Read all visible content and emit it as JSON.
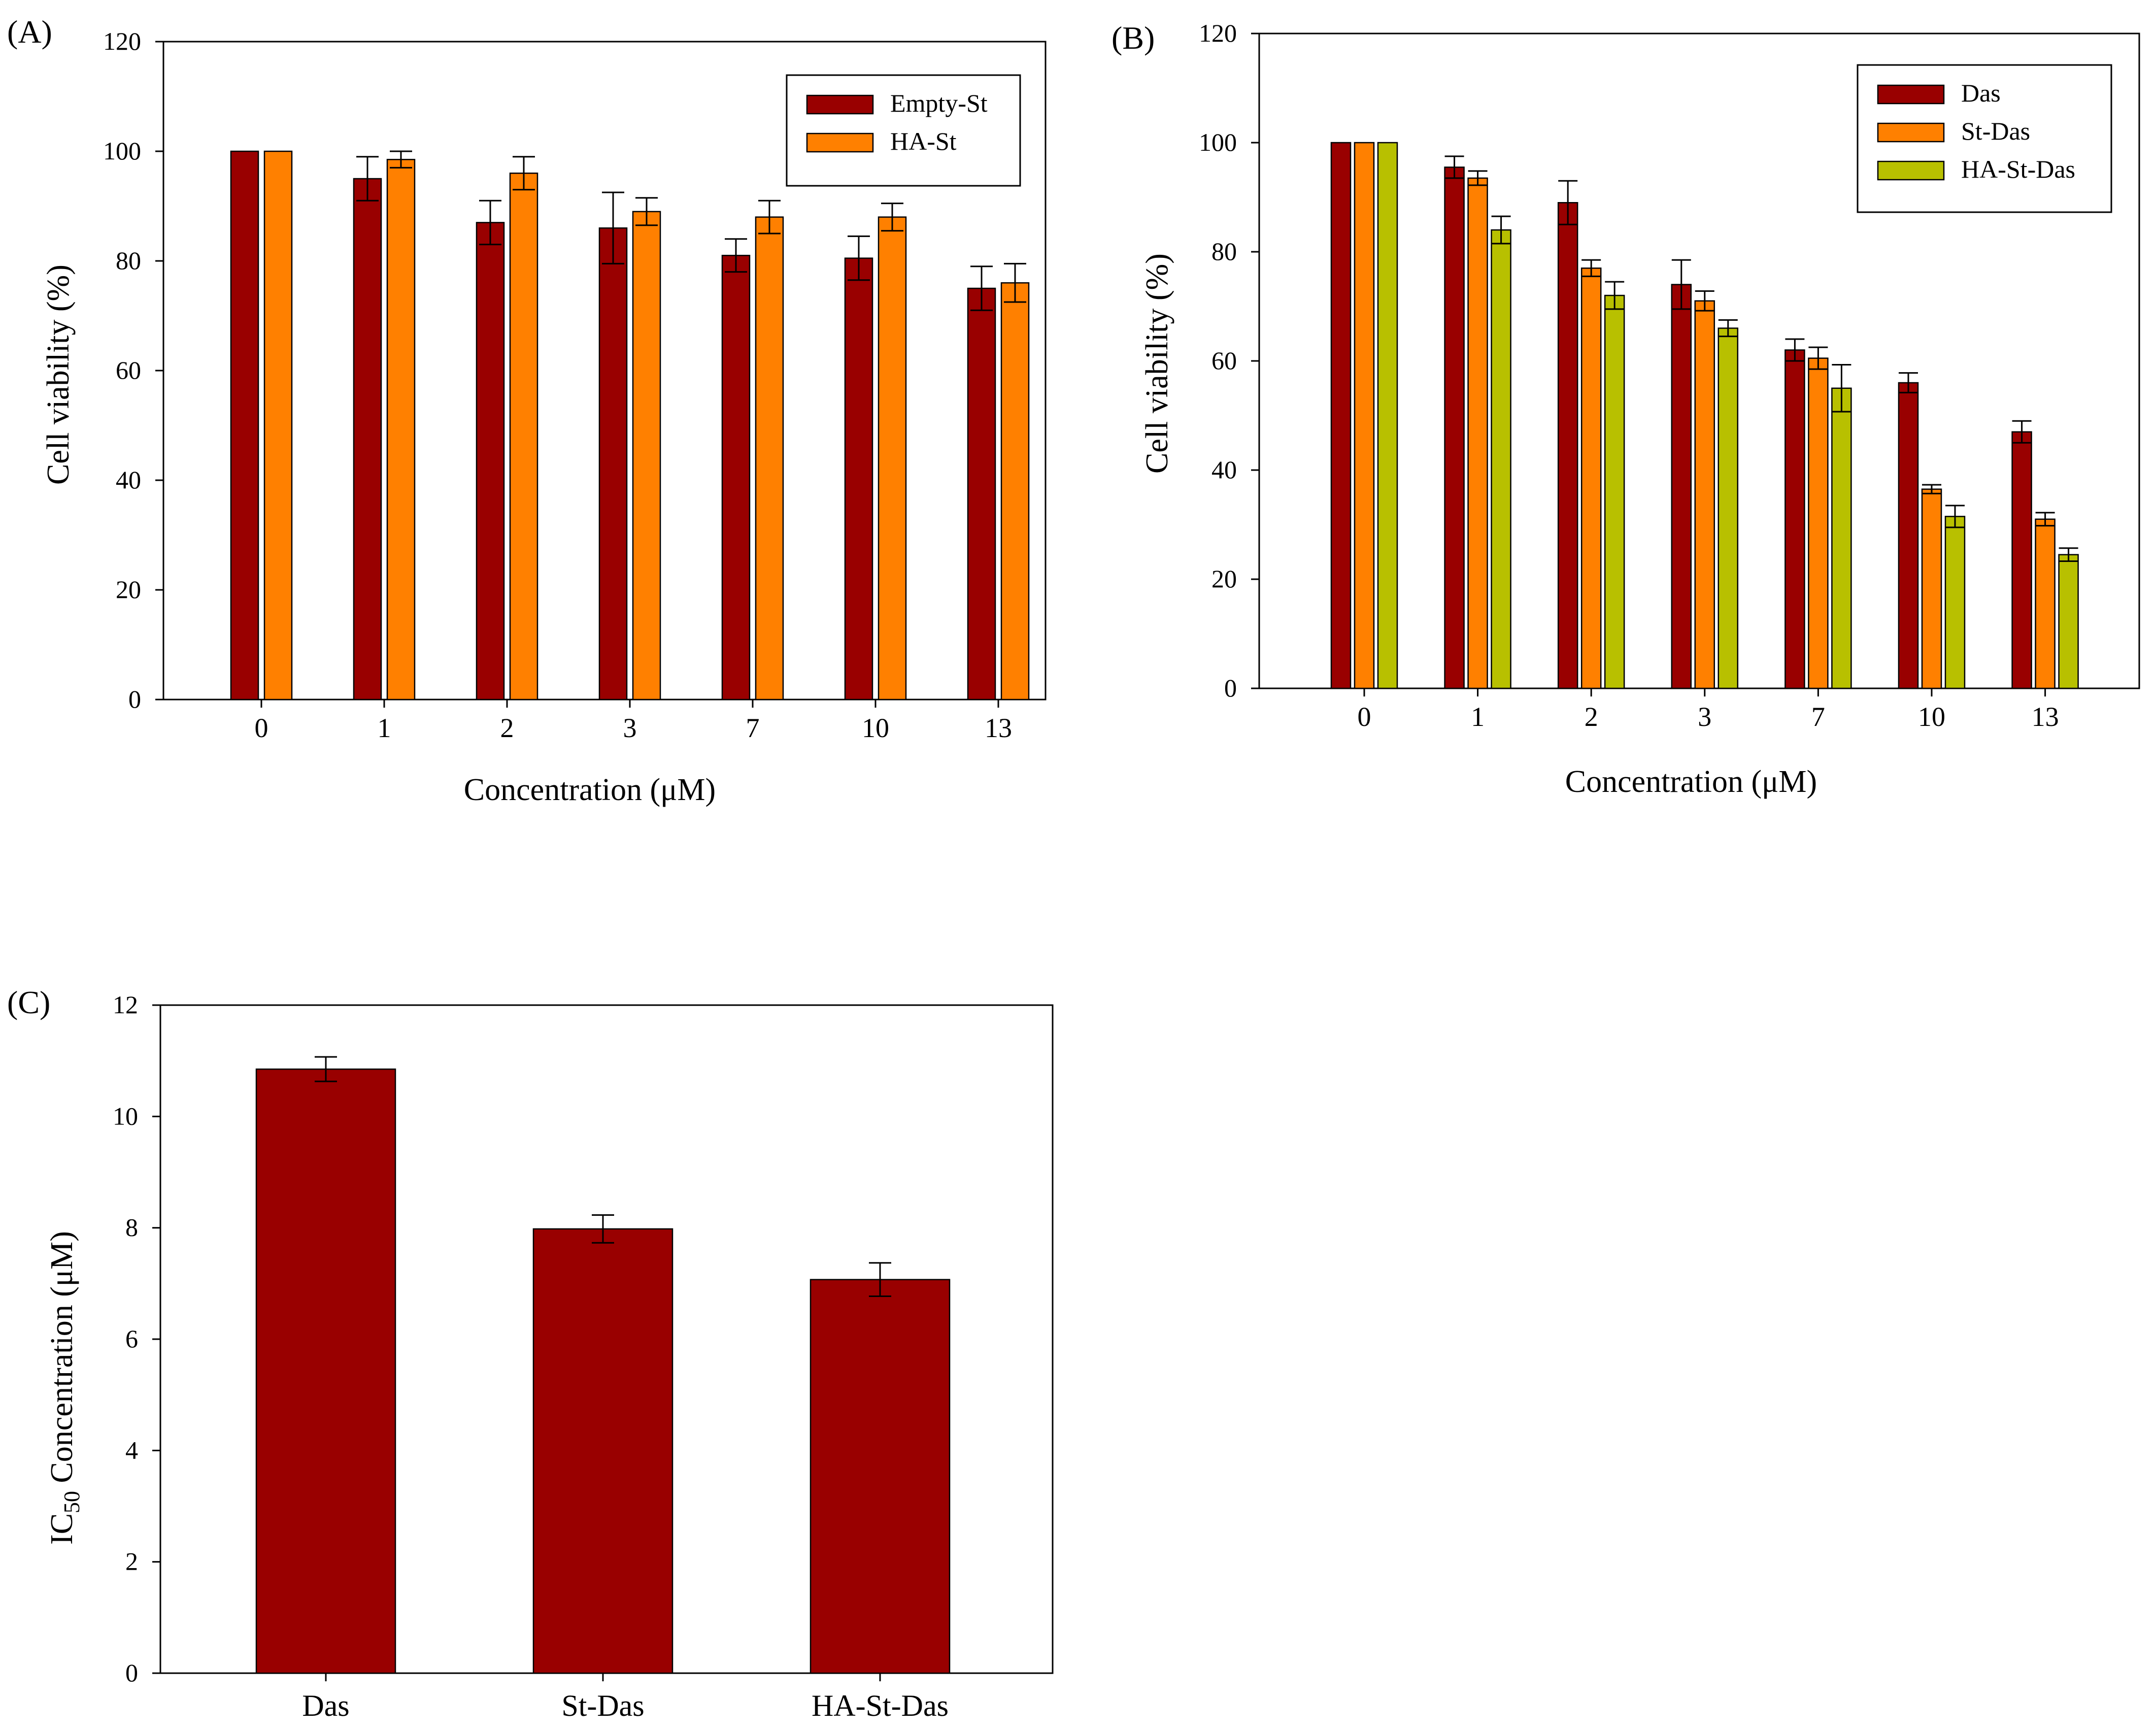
{
  "colors": {
    "Das": "#990000",
    "Empty-St": "#990000",
    "HA-St": "#FF8000",
    "St-Das": "#FF8000",
    "HA-St-Das": "#B8C000",
    "axis": "#000000"
  },
  "chart_data": [
    {
      "id": "A",
      "panel_label": "(A)",
      "type": "bar",
      "title": "",
      "xlabel": "Concentration (μM)",
      "ylabel": "Cell viability (%)",
      "ylim": [
        0,
        120
      ],
      "yticks": [
        0,
        20,
        40,
        60,
        80,
        100,
        120
      ],
      "grid": false,
      "legend": "top-right",
      "categories": [
        "0",
        "1",
        "2",
        "3",
        "7",
        "10",
        "13"
      ],
      "series": [
        {
          "name": "Empty-St",
          "values": [
            100,
            95,
            87,
            86,
            81,
            80.5,
            75
          ],
          "errors": [
            0,
            4,
            4,
            6.5,
            3,
            4,
            4
          ]
        },
        {
          "name": "HA-St",
          "values": [
            100,
            98.5,
            96,
            89,
            88,
            88,
            76
          ],
          "errors": [
            0,
            1.5,
            3,
            2.5,
            3,
            2.5,
            3.5
          ]
        }
      ]
    },
    {
      "id": "B",
      "panel_label": "(B)",
      "type": "bar",
      "title": "",
      "xlabel": "Concentration (μM)",
      "ylabel": "Cell viability (%)",
      "ylim": [
        0,
        120
      ],
      "yticks": [
        0,
        20,
        40,
        60,
        80,
        100,
        120
      ],
      "grid": false,
      "legend": "top-right",
      "categories": [
        "0",
        "1",
        "2",
        "3",
        "7",
        "10",
        "13"
      ],
      "series": [
        {
          "name": "Das",
          "values": [
            100,
            95.5,
            89,
            74,
            62,
            56,
            47
          ],
          "errors": [
            0,
            2,
            4,
            4.5,
            2,
            1.8,
            2
          ]
        },
        {
          "name": "St-Das",
          "values": [
            100,
            93.5,
            77,
            71,
            60.5,
            36.5,
            31
          ],
          "errors": [
            0,
            1.3,
            1.5,
            1.8,
            2,
            0.8,
            1.2
          ]
        },
        {
          "name": "HA-St-Das",
          "values": [
            100,
            84,
            72,
            66,
            55,
            31.5,
            24.5
          ],
          "errors": [
            0,
            2.5,
            2.5,
            1.5,
            4.3,
            2,
            1.2
          ]
        }
      ]
    },
    {
      "id": "C",
      "panel_label": "(C)",
      "type": "bar",
      "title": "",
      "xlabel": "",
      "ylabel_main": "IC",
      "ylabel_sub": "50",
      "ylabel_rest": " Concentration (μM)",
      "ylim": [
        0,
        12
      ],
      "yticks": [
        0,
        2,
        4,
        6,
        8,
        10,
        12
      ],
      "grid": false,
      "legend": "none",
      "categories": [
        "Das",
        "St-Das",
        "HA-St-Das"
      ],
      "series": [
        {
          "name": "IC50",
          "values": [
            10.85,
            7.98,
            7.07
          ],
          "errors": [
            0.22,
            0.25,
            0.3
          ]
        }
      ]
    }
  ]
}
